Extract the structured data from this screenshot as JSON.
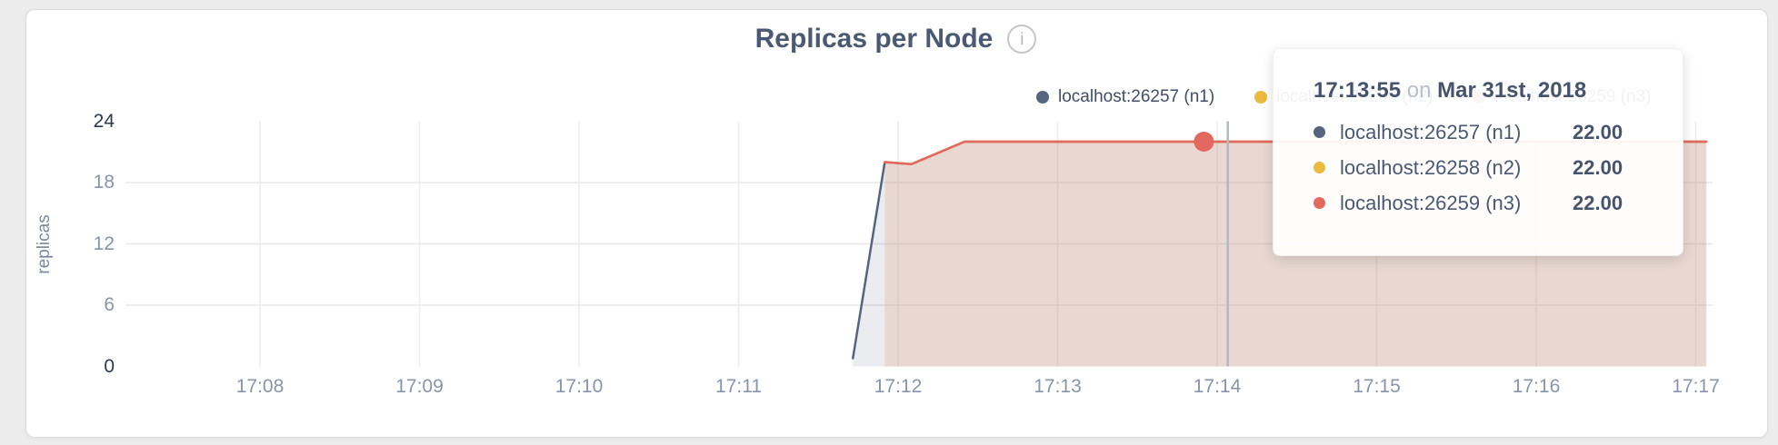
{
  "header": {
    "title": "Replicas per Node",
    "info_glyph": "i"
  },
  "legend": {
    "items": [
      {
        "label": "localhost:26257 (n1)",
        "color": "#556480"
      },
      {
        "label": "localhost:26258 (n2)",
        "color": "#ecba3e"
      },
      {
        "label": "localhost:26259 (n3)",
        "color": "#e5685f"
      }
    ]
  },
  "tooltip": {
    "time": "17:13:55",
    "conjunction": "on",
    "date": "Mar 31st, 2018",
    "rows": [
      {
        "label": "localhost:26257 (n1)",
        "value": "22.00",
        "color": "#556480"
      },
      {
        "label": "localhost:26258 (n2)",
        "value": "22.00",
        "color": "#ecba3e"
      },
      {
        "label": "localhost:26259 (n3)",
        "value": "22.00",
        "color": "#e5685f"
      }
    ]
  },
  "chart_data": {
    "type": "area",
    "title": "Replicas per Node",
    "xlabel": "",
    "ylabel": "replicas",
    "ylim": [
      0,
      24
    ],
    "yticks": [
      0,
      6,
      12,
      18,
      24
    ],
    "x_ticks": [
      "17:08",
      "17:09",
      "17:10",
      "17:11",
      "17:12",
      "17:13",
      "17:14",
      "17:15",
      "17:16",
      "17:17"
    ],
    "grid": true,
    "legend_position": "top-right-inline",
    "series": [
      {
        "id": "n1",
        "name": "localhost:26257 (n1)",
        "color": "#556480",
        "fill": "rgba(85,100,128,0.12)",
        "points": [
          [
            "17:11:43",
            0.8
          ],
          [
            "17:11:55",
            20
          ],
          [
            "17:12:05",
            19.8
          ],
          [
            "17:12:25",
            22
          ],
          [
            "17:17:04",
            22
          ]
        ]
      },
      {
        "id": "n2",
        "name": "localhost:26258 (n2)",
        "color": "#ecba3e",
        "fill": "rgba(236,186,62,0.08)",
        "points": [
          [
            "17:11:55",
            20
          ],
          [
            "17:12:05",
            19.8
          ],
          [
            "17:12:25",
            22
          ],
          [
            "17:17:04",
            22
          ]
        ]
      },
      {
        "id": "n3",
        "name": "localhost:26259 (n3)",
        "color": "#e5685f",
        "fill": "rgba(229,104,95,0.12)",
        "points": [
          [
            "17:11:55",
            20
          ],
          [
            "17:12:05",
            19.8
          ],
          [
            "17:12:25",
            22
          ],
          [
            "17:17:04",
            22
          ]
        ]
      }
    ],
    "hover": {
      "time": "17:13:55",
      "value": 22,
      "guideline_time": "17:14:04",
      "highlighted_series": "localhost:26259 (n3)"
    }
  }
}
